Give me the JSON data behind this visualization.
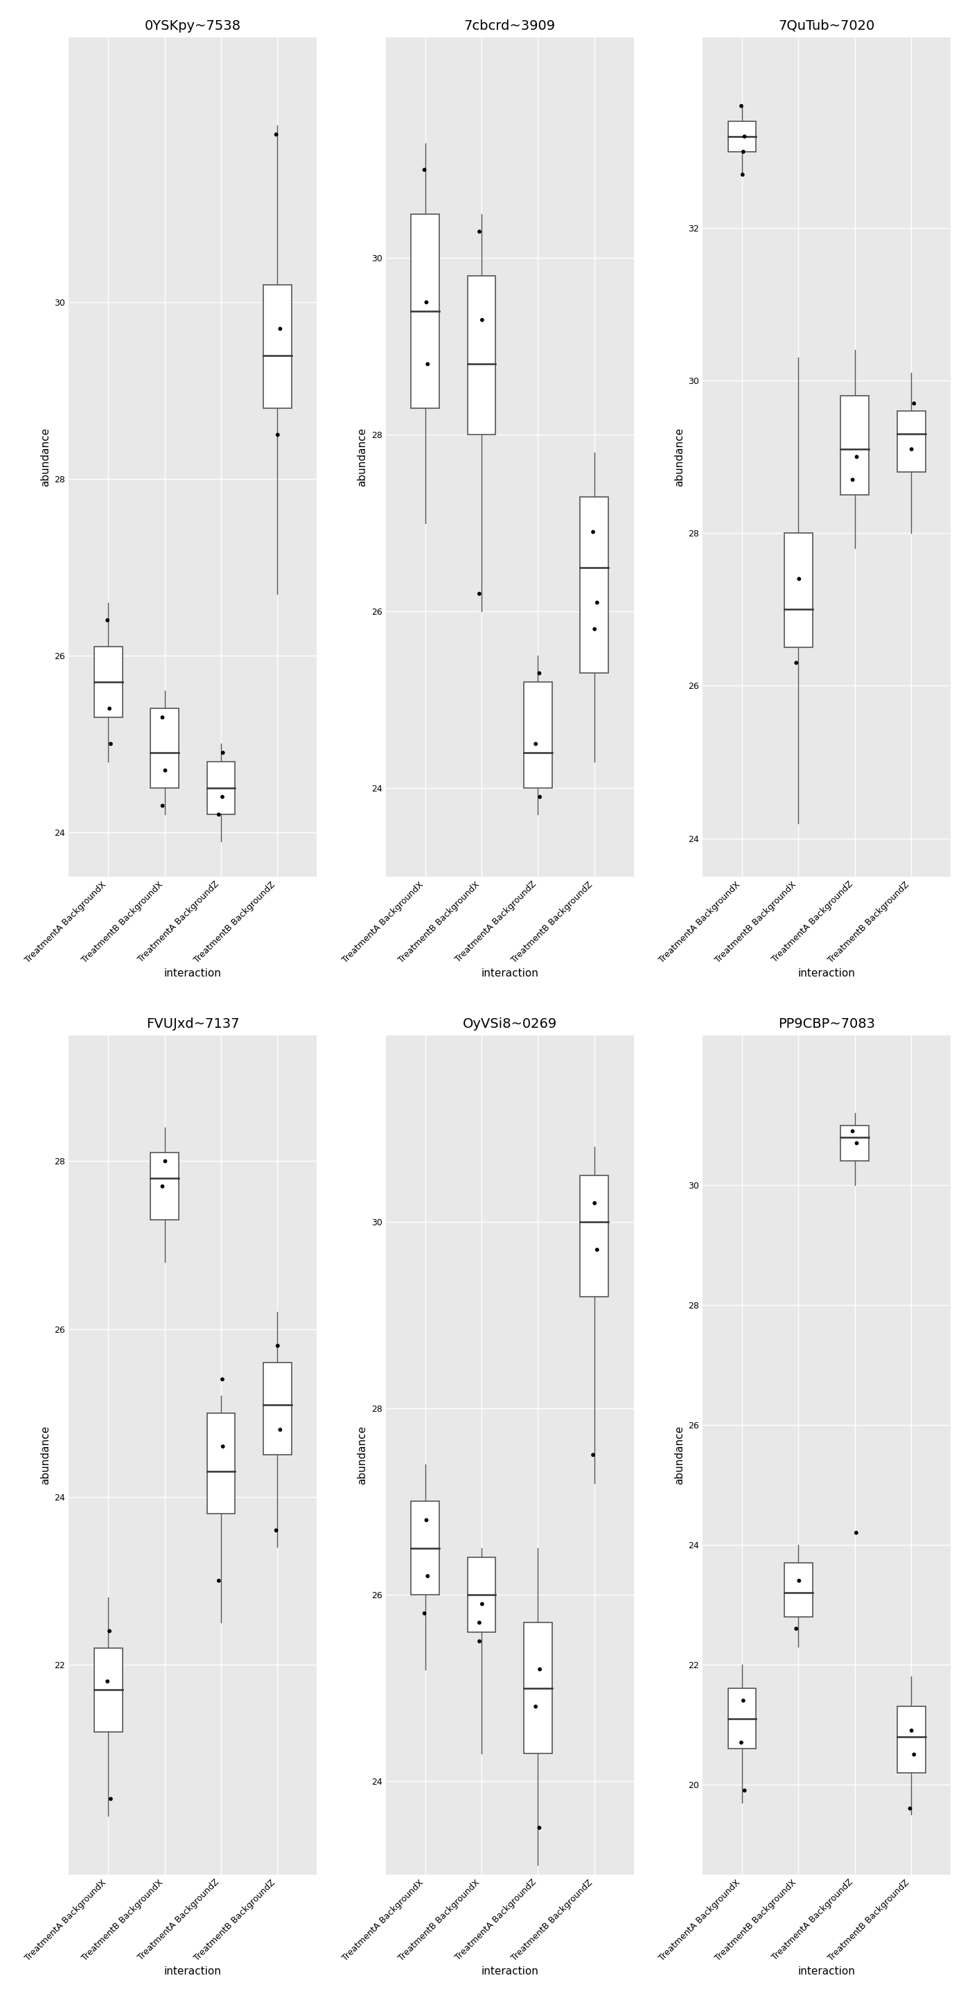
{
  "plots": [
    {
      "title": "0YSKpy~7538",
      "groups": [
        "TreatmentA BackgroundX",
        "TreatmentB BackgroundX",
        "TreatmentA BackgroundZ",
        "TreatmentB BackgroundZ"
      ],
      "boxes": [
        {
          "q1": 25.3,
          "median": 25.7,
          "q3": 26.1,
          "whisker_low": 24.8,
          "whisker_high": 26.6,
          "points": [
            26.4,
            25.0,
            25.4
          ]
        },
        {
          "q1": 24.5,
          "median": 24.9,
          "q3": 25.4,
          "whisker_low": 24.2,
          "whisker_high": 25.6,
          "points": [
            25.3,
            24.7,
            24.3
          ]
        },
        {
          "q1": 24.2,
          "median": 24.5,
          "q3": 24.8,
          "whisker_low": 23.9,
          "whisker_high": 25.0,
          "points": [
            24.9,
            24.2,
            24.4
          ]
        },
        {
          "q1": 28.8,
          "median": 29.4,
          "q3": 30.2,
          "whisker_low": 26.7,
          "whisker_high": 32.0,
          "points": [
            29.7,
            28.5,
            31.9
          ]
        }
      ],
      "ylim": [
        23.5,
        33.0
      ],
      "yticks": [
        24,
        26,
        28,
        30
      ]
    },
    {
      "title": "7cbcrd~3909",
      "groups": [
        "TreatmentA BackgroundX",
        "TreatmentB BackgroundX",
        "TreatmentA BackgroundZ",
        "TreatmentB BackgroundZ"
      ],
      "boxes": [
        {
          "q1": 28.3,
          "median": 29.4,
          "q3": 30.5,
          "whisker_low": 27.0,
          "whisker_high": 31.3,
          "points": [
            31.0,
            28.8,
            29.5
          ]
        },
        {
          "q1": 28.0,
          "median": 28.8,
          "q3": 29.8,
          "whisker_low": 26.0,
          "whisker_high": 30.5,
          "points": [
            26.2,
            29.3,
            30.3
          ]
        },
        {
          "q1": 24.0,
          "median": 24.4,
          "q3": 25.2,
          "whisker_low": 23.7,
          "whisker_high": 25.5,
          "points": [
            23.9,
            24.5,
            25.3
          ]
        },
        {
          "q1": 25.3,
          "median": 26.5,
          "q3": 27.3,
          "whisker_low": 24.3,
          "whisker_high": 27.8,
          "points": [
            26.1,
            25.8,
            26.9
          ]
        }
      ],
      "ylim": [
        23.0,
        32.5
      ],
      "yticks": [
        24,
        26,
        28,
        30
      ]
    },
    {
      "title": "7QuTub~7020",
      "groups": [
        "TreatmentA BackgroundX",
        "TreatmentB BackgroundX",
        "TreatmentA BackgroundZ",
        "TreatmentB BackgroundZ"
      ],
      "boxes": [
        {
          "q1": 33.0,
          "median": 33.2,
          "q3": 33.4,
          "whisker_low": 32.7,
          "whisker_high": 33.6,
          "points": [
            33.6,
            33.2,
            33.0,
            32.7
          ]
        },
        {
          "q1": 26.5,
          "median": 27.0,
          "q3": 28.0,
          "whisker_low": 24.2,
          "whisker_high": 30.3,
          "points": [
            26.3,
            27.4
          ]
        },
        {
          "q1": 28.5,
          "median": 29.1,
          "q3": 29.8,
          "whisker_low": 27.8,
          "whisker_high": 30.4,
          "points": [
            29.0,
            28.7
          ]
        },
        {
          "q1": 28.8,
          "median": 29.3,
          "q3": 29.6,
          "whisker_low": 28.0,
          "whisker_high": 30.1,
          "points": [
            29.7,
            29.1
          ]
        }
      ],
      "ylim": [
        23.5,
        34.5
      ],
      "yticks": [
        24,
        26,
        28,
        30,
        32
      ]
    },
    {
      "title": "FVUJxd~7137",
      "groups": [
        "TreatmentA BackgroundX",
        "TreatmentB BackgroundX",
        "TreatmentA BackgroundZ",
        "TreatmentB BackgroundZ"
      ],
      "boxes": [
        {
          "q1": 21.2,
          "median": 21.7,
          "q3": 22.2,
          "whisker_low": 20.2,
          "whisker_high": 22.8,
          "points": [
            21.8,
            20.4,
            22.4
          ]
        },
        {
          "q1": 27.3,
          "median": 27.8,
          "q3": 28.1,
          "whisker_low": 26.8,
          "whisker_high": 28.4,
          "points": [
            27.7,
            28.0
          ]
        },
        {
          "q1": 23.8,
          "median": 24.3,
          "q3": 25.0,
          "whisker_low": 22.5,
          "whisker_high": 25.2,
          "points": [
            24.6,
            23.0,
            25.4
          ]
        },
        {
          "q1": 24.5,
          "median": 25.1,
          "q3": 25.6,
          "whisker_low": 23.4,
          "whisker_high": 26.2,
          "points": [
            24.8,
            25.8,
            23.6
          ]
        }
      ],
      "ylim": [
        19.5,
        29.5
      ],
      "yticks": [
        22,
        24,
        26,
        28
      ]
    },
    {
      "title": "OyVSi8~0269",
      "groups": [
        "TreatmentA BackgroundX",
        "TreatmentB BackgroundX",
        "TreatmentA BackgroundZ",
        "TreatmentB BackgroundZ"
      ],
      "boxes": [
        {
          "q1": 26.0,
          "median": 26.5,
          "q3": 27.0,
          "whisker_low": 25.2,
          "whisker_high": 27.4,
          "points": [
            25.8,
            26.2,
            26.8
          ]
        },
        {
          "q1": 25.6,
          "median": 26.0,
          "q3": 26.4,
          "whisker_low": 24.3,
          "whisker_high": 26.5,
          "points": [
            25.7,
            25.9,
            25.5
          ]
        },
        {
          "q1": 24.3,
          "median": 25.0,
          "q3": 25.7,
          "whisker_low": 23.1,
          "whisker_high": 26.5,
          "points": [
            25.2,
            24.8,
            23.5
          ]
        },
        {
          "q1": 29.2,
          "median": 30.0,
          "q3": 30.5,
          "whisker_low": 27.2,
          "whisker_high": 30.8,
          "points": [
            29.7,
            30.2,
            27.5
          ]
        }
      ],
      "ylim": [
        23.0,
        32.0
      ],
      "yticks": [
        24,
        26,
        28,
        30
      ]
    },
    {
      "title": "PP9CBP~7083",
      "groups": [
        "TreatmentA BackgroundX",
        "TreatmentB BackgroundX",
        "TreatmentA BackgroundZ",
        "TreatmentB BackgroundZ"
      ],
      "boxes": [
        {
          "q1": 20.6,
          "median": 21.1,
          "q3": 21.6,
          "whisker_low": 19.7,
          "whisker_high": 22.0,
          "points": [
            20.7,
            19.9,
            21.4
          ]
        },
        {
          "q1": 22.8,
          "median": 23.2,
          "q3": 23.7,
          "whisker_low": 22.3,
          "whisker_high": 24.0,
          "points": [
            22.6,
            23.4
          ]
        },
        {
          "q1": 30.4,
          "median": 30.8,
          "q3": 31.0,
          "whisker_low": 30.0,
          "whisker_high": 31.2,
          "points": [
            30.7,
            30.9,
            24.2
          ]
        },
        {
          "q1": 20.2,
          "median": 20.8,
          "q3": 21.3,
          "whisker_low": 19.5,
          "whisker_high": 21.8,
          "points": [
            20.5,
            20.9,
            19.6
          ]
        }
      ],
      "ylim": [
        18.5,
        32.5
      ],
      "yticks": [
        20,
        22,
        24,
        26,
        28,
        30
      ]
    }
  ],
  "bg_color": "#e8e8e8",
  "box_color": "white",
  "box_edge_color": "#555555",
  "median_color": "#333333",
  "whisker_color": "#555555",
  "point_color": "black",
  "point_size": 5,
  "xlabel": "interaction",
  "ylabel": "abundance",
  "tick_label_rotation": 45,
  "title_fontsize": 14,
  "label_fontsize": 11,
  "tick_fontsize": 9
}
